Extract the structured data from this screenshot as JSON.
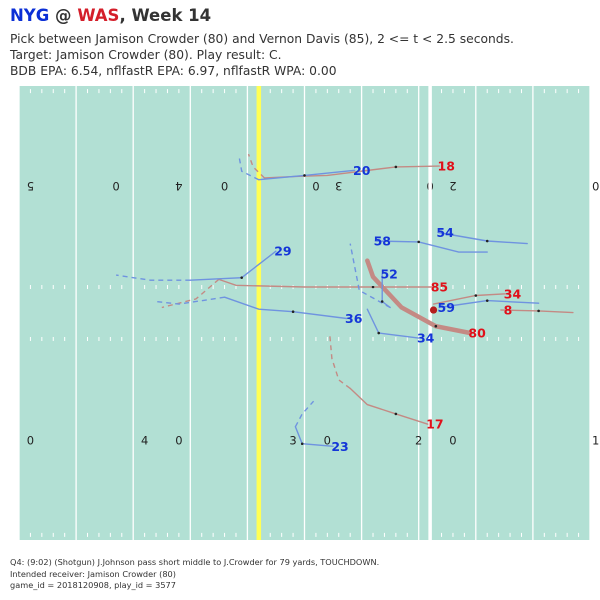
{
  "header": {
    "away_team": "NYG",
    "at": " @ ",
    "home_team": "WAS",
    "week": ", Week 14",
    "line1": "Pick between Jamison Crowder (80) and Vernon Davis (85), 2 <= t < 2.5 seconds.",
    "line2": "Target: Jamison Crowder (80). Play result: C.",
    "line3": "BDB EPA: 6.54, nflfastR EPA: 6.97, nflfastR WPA: 0.00"
  },
  "caption": {
    "line1": "Q4: (9:02) (Shotgun) J.Johnson pass short middle to J.Crowder for 79 yards, TOUCHDOWN.",
    "line2": "Intended receiver: Jamison Crowder (80)",
    "line3": "game_id = 2018120908, play_id = 3577"
  },
  "colors": {
    "field": "#b2e0d4",
    "offense_track": "#c48a84",
    "defense_track": "#6f93e0",
    "offense_label": "#e0101a",
    "defense_label": "#1436d8",
    "line_of_scrimmage": "#ffff55",
    "ball": "#b41e1e"
  },
  "chart_data": {
    "type": "scatter",
    "description_units": "field x in yards (0-53.3 across), y in yards along field (0-120)",
    "xlim": [
      0,
      53.3
    ],
    "ylim": [
      25,
      75
    ],
    "line_of_scrimmage_y": 46,
    "first_down_y": 61,
    "yard_numbers_top": [
      {
        "y": 26,
        "text": "5"
      },
      {
        "y": 33.5,
        "text": "0"
      },
      {
        "y": 39,
        "text": "4"
      },
      {
        "y": 43,
        "text": "0"
      },
      {
        "y": 51,
        "text": "0"
      },
      {
        "y": 53,
        "text": "3"
      },
      {
        "y": 61,
        "text": "0"
      },
      {
        "y": 63,
        "text": "2"
      },
      {
        "y": 75.5,
        "text": "0"
      }
    ],
    "yard_numbers_bottom": [
      {
        "y": 26,
        "text": "0"
      },
      {
        "y": 36,
        "text": "4"
      },
      {
        "y": 39,
        "text": "0"
      },
      {
        "y": 49,
        "text": "3"
      },
      {
        "y": 52,
        "text": "0"
      },
      {
        "y": 60,
        "text": "2"
      },
      {
        "y": 63,
        "text": "0"
      },
      {
        "y": 75.5,
        "text": "1"
      }
    ],
    "ball": {
      "x": 26.3,
      "y": 61.3
    },
    "offense": [
      {
        "label": "17",
        "highlight": false,
        "solid": [
          [
            39.7,
            60.8
          ],
          [
            38.5,
            58
          ],
          [
            37.4,
            55.5
          ],
          [
            35.5,
            54
          ]
        ],
        "dashed": [
          [
            35.5,
            54
          ],
          [
            34.5,
            53
          ],
          [
            32,
            52.4
          ],
          [
            29,
            52.2
          ]
        ]
      },
      {
        "label": "80",
        "highlight": true,
        "solid": [
          [
            29.0,
            64.5
          ],
          [
            28.2,
            61.5
          ],
          [
            26.0,
            58.5
          ],
          [
            22.4,
            56.0
          ],
          [
            20.5,
            55.5
          ]
        ],
        "dashed": []
      },
      {
        "label": "85",
        "highlight": false,
        "solid": [
          [
            23.6,
            61.2
          ],
          [
            23.6,
            56
          ],
          [
            23.6,
            50
          ],
          [
            23.4,
            44
          ],
          [
            22.7,
            42.5
          ]
        ],
        "dashed": [
          [
            22.7,
            42.5
          ],
          [
            25.0,
            40.5
          ],
          [
            26.0,
            37.5
          ]
        ]
      },
      {
        "label": "8",
        "highlight": false,
        "solid": [
          [
            26.3,
            67.2
          ],
          [
            26.4,
            70.5
          ],
          [
            26.6,
            73.5
          ]
        ],
        "dashed": []
      },
      {
        "label": "34",
        "highlight": false,
        "solid": [
          [
            24.4,
            67.6
          ],
          [
            24.6,
            65
          ],
          [
            25.6,
            61.3
          ]
        ],
        "dashed": []
      },
      {
        "label": "18",
        "highlight": false,
        "solid": [
          [
            9.4,
            61.8
          ],
          [
            9.5,
            58
          ],
          [
            10.5,
            52
          ],
          [
            10.6,
            49.5
          ],
          [
            10.8,
            46.5
          ]
        ],
        "dashed": [
          [
            10.8,
            46.5
          ],
          [
            9.5,
            45.5
          ],
          [
            8.0,
            45.1
          ]
        ]
      }
    ],
    "defense": [
      {
        "label": "23",
        "highlight": false,
        "solid": [
          [
            42.3,
            52.5
          ],
          [
            42.0,
            49.8
          ],
          [
            40.0,
            49.2
          ]
        ],
        "dashed": [
          [
            40.0,
            49.2
          ],
          [
            38.5,
            49.8
          ],
          [
            37.0,
            50.8
          ]
        ]
      },
      {
        "label": "34",
        "highlight": false,
        "solid": [
          [
            29.6,
            60.0
          ],
          [
            29.0,
            56.5
          ],
          [
            26.2,
            55.5
          ]
        ],
        "dashed": []
      },
      {
        "label": "36",
        "highlight": false,
        "solid": [
          [
            27.3,
            53.7
          ],
          [
            26.5,
            49
          ],
          [
            26.2,
            46
          ],
          [
            24.8,
            43
          ]
        ],
        "dashed": [
          [
            24.8,
            43
          ],
          [
            25.6,
            39
          ],
          [
            25.3,
            37
          ]
        ]
      },
      {
        "label": "59",
        "highlight": false,
        "solid": [
          [
            26.0,
            61.8
          ],
          [
            25.2,
            66
          ],
          [
            25.5,
            70.5
          ]
        ],
        "dashed": []
      },
      {
        "label": "52",
        "highlight": false,
        "solid": [
          [
            22.1,
            56.8
          ],
          [
            25.3,
            56.8
          ],
          [
            26.0,
            57.5
          ]
        ],
        "dashed": [
          [
            26.0,
            57.5
          ],
          [
            24.0,
            54.8
          ],
          [
            18.5,
            54.0
          ]
        ]
      },
      {
        "label": "29",
        "highlight": false,
        "solid": [
          [
            19.4,
            47.5
          ],
          [
            22.5,
            44.5
          ],
          [
            22.8,
            40
          ]
        ],
        "dashed": [
          [
            22.8,
            40
          ],
          [
            22.8,
            36.5
          ],
          [
            22.2,
            33.5
          ]
        ]
      },
      {
        "label": "58",
        "highlight": false,
        "solid": [
          [
            18.2,
            56.2
          ],
          [
            18.3,
            60
          ],
          [
            19.5,
            63.5
          ],
          [
            19.5,
            66
          ]
        ],
        "dashed": []
      },
      {
        "label": "54",
        "highlight": false,
        "solid": [
          [
            17.2,
            61.7
          ],
          [
            18.2,
            66
          ],
          [
            18.5,
            69.5
          ]
        ],
        "dashed": []
      },
      {
        "label": "20",
        "highlight": false,
        "solid": [
          [
            9.9,
            54.4
          ],
          [
            10.5,
            50
          ],
          [
            11.0,
            46
          ]
        ],
        "dashed": [
          [
            11.0,
            46
          ],
          [
            10.0,
            44.5
          ],
          [
            8.5,
            44.3
          ]
        ]
      }
    ]
  }
}
